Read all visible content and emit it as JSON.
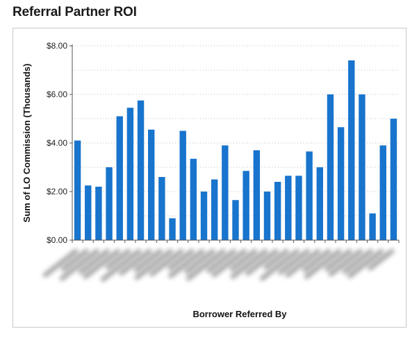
{
  "page": {
    "title": "Referral Partner ROI"
  },
  "chart_data": {
    "type": "bar",
    "title": "",
    "xlabel": "Borrower Referred By",
    "ylabel": "Sum of LO Commission (Thousands)",
    "ylim": [
      0,
      8
    ],
    "yticks": [
      0,
      2,
      4,
      6,
      8
    ],
    "ytick_labels": [
      "$0.00",
      "$2.00",
      "$4.00",
      "$6.00",
      "$8.00"
    ],
    "grid": true,
    "legend": "none",
    "bar_color": "#1874cd",
    "categories_blurred": true,
    "values": [
      4.1,
      2.25,
      2.2,
      3.0,
      5.1,
      5.45,
      5.75,
      4.55,
      2.6,
      0.9,
      4.5,
      3.35,
      2.0,
      2.5,
      3.9,
      1.65,
      2.85,
      3.7,
      2.0,
      2.4,
      2.65,
      2.65,
      3.65,
      3.0,
      6.0,
      4.65,
      7.4,
      6.0,
      1.1,
      3.9,
      5.0
    ]
  }
}
